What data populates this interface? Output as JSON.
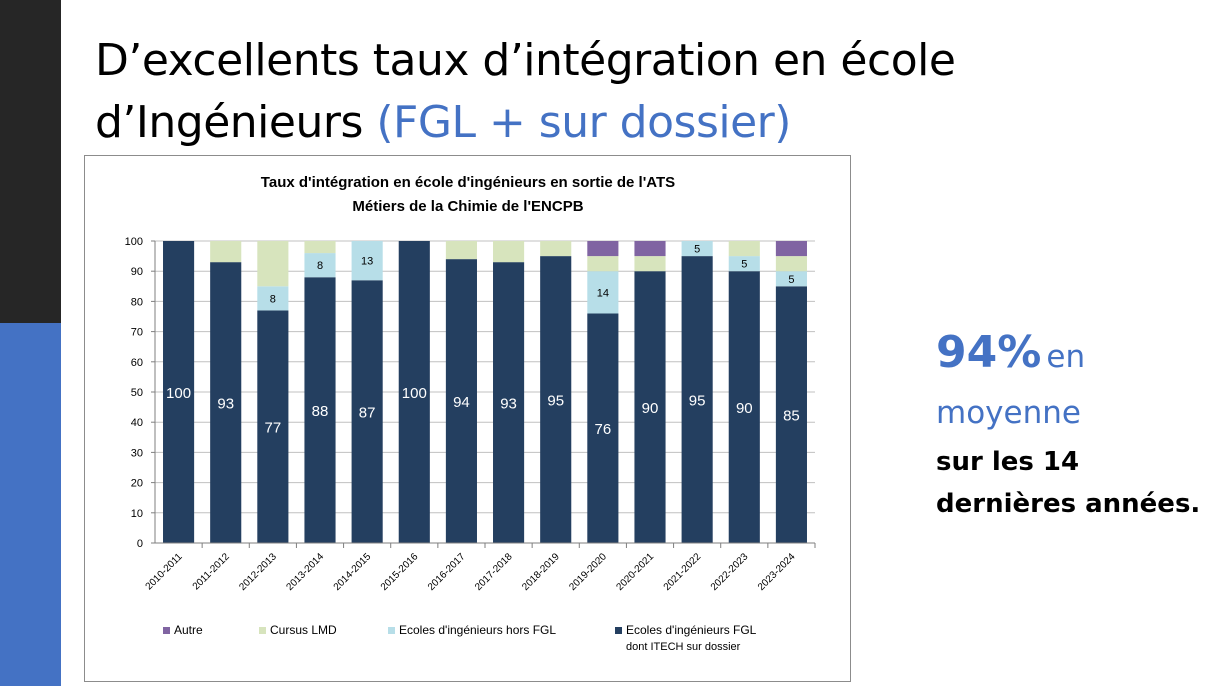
{
  "slide": {
    "title_part1": "D’excellents taux d’intégration en école d’Ingénieurs",
    "title_part2": "(FGL + sur dossier)",
    "note_value": "94%",
    "note_en": "en",
    "note_moyenne": "moyenne",
    "note_line3": "sur les 14",
    "note_line4": "dernières années."
  },
  "chart_data": {
    "type": "bar",
    "stacked": true,
    "title_line1": "Taux d'intégration en école d'ingénieurs en sortie de l'ATS",
    "title_line2": "Métiers de la Chimie de l'ENCPB",
    "categories": [
      "2010-2011",
      "2011-2012",
      "2012-2013",
      "2013-2014",
      "2014-2015",
      "2015-2016",
      "2016-2017",
      "2017-2018",
      "2018-2019",
      "2019-2020",
      "2020-2021",
      "2021-2022",
      "2022-2023",
      "2023-2024"
    ],
    "ylim": [
      0,
      100
    ],
    "yticks": [
      0,
      10,
      20,
      30,
      40,
      50,
      60,
      70,
      80,
      90,
      100
    ],
    "grid": true,
    "legend_position": "bottom",
    "series": [
      {
        "name": "Ecoles d'ingénieurs FGL dont ITECH sur dossier",
        "color": "#243f60",
        "values": [
          100,
          93,
          77,
          88,
          87,
          100,
          94,
          93,
          95,
          76,
          90,
          95,
          90,
          85
        ],
        "labels": [
          "100",
          "93",
          "77",
          "88",
          "87",
          "100",
          "94",
          "93",
          "95",
          "76",
          "90",
          "95",
          "90",
          "85"
        ]
      },
      {
        "name": "Ecoles d'ingénieurs hors FGL",
        "color": "#b7dee8",
        "values": [
          0,
          0,
          8,
          8,
          13,
          0,
          0,
          0,
          0,
          14,
          0,
          5,
          5,
          5
        ],
        "labels": [
          "",
          "",
          "8",
          "8",
          "13",
          "",
          "",
          "",
          "",
          "14",
          "",
          "5",
          "5",
          "5"
        ]
      },
      {
        "name": "Cursus LMD",
        "color": "#d7e4bd",
        "values": [
          0,
          7,
          15,
          4,
          0,
          0,
          6,
          7,
          5,
          5,
          5,
          0,
          5,
          5
        ],
        "labels": [
          "",
          "",
          "",
          "",
          "",
          "",
          "",
          "",
          "",
          "",
          "",
          "",
          "",
          ""
        ]
      },
      {
        "name": "Autre",
        "color": "#8064a2",
        "values": [
          0,
          0,
          0,
          0,
          0,
          0,
          0,
          0,
          0,
          5,
          5,
          0,
          0,
          5
        ],
        "labels": [
          "",
          "",
          "",
          "",
          "",
          "",
          "",
          "",
          "",
          "",
          "",
          "",
          "",
          ""
        ]
      }
    ],
    "legend_order": [
      3,
      2,
      1,
      0
    ]
  }
}
